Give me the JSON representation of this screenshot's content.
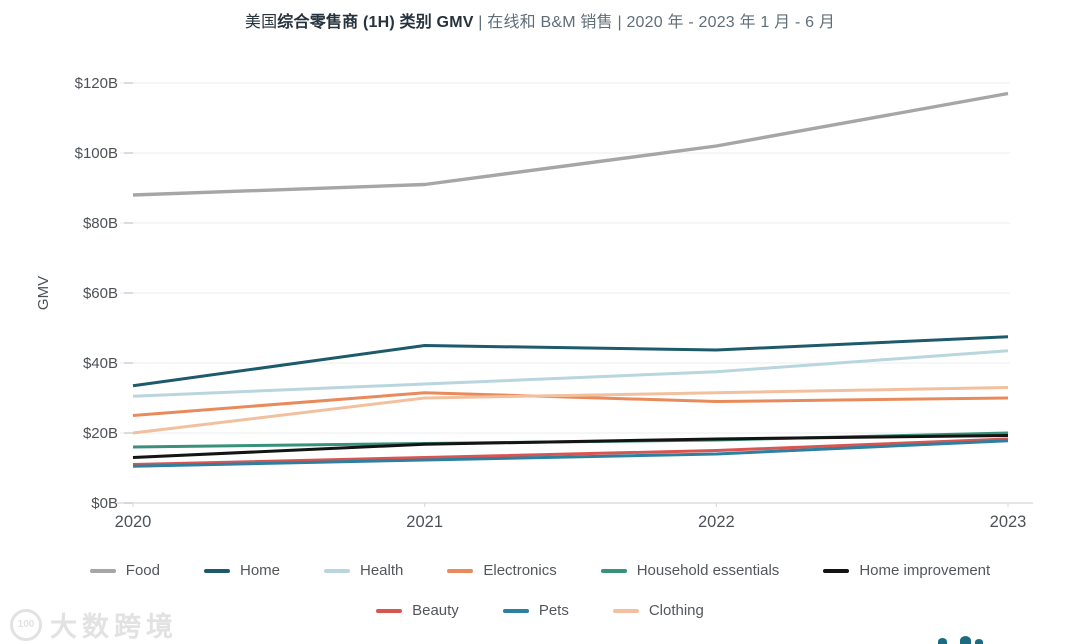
{
  "title": {
    "prefix": "美国",
    "bold": "综合零售商 (1H) 类别 GMV",
    "rest": " | 在线和 B&M 销售 | 2020 年 - 2023 年 1 月 - 6 月"
  },
  "watermark": {
    "logo": "100",
    "text": "大数跨境"
  },
  "chart_data": {
    "type": "line",
    "title": "美国综合零售商 (1H) 类别 GMV | 在线和 B&M 销售 | 2020 年 - 2023 年 1 月 - 6 月",
    "xlabel": "",
    "ylabel": "GMV",
    "x": [
      2020,
      2021,
      2022,
      2023
    ],
    "x_labels": [
      "2020",
      "2021",
      "2022",
      "2023"
    ],
    "y_ticks": [
      "$0B",
      "$20B",
      "$40B",
      "$60B",
      "$80B",
      "$100B",
      "$120B"
    ],
    "ylim": [
      0,
      120
    ],
    "y_tick_step": 20,
    "unit": "$ billions GMV",
    "grid": "horizontal",
    "legend_position": "bottom",
    "series": [
      {
        "name": "Food",
        "color": "#a6a6a6",
        "width": 3.4,
        "values": [
          88,
          91,
          102,
          117
        ]
      },
      {
        "name": "Home",
        "color": "#1d5a6b",
        "width": 3,
        "values": [
          33.5,
          45,
          43.7,
          47.5
        ]
      },
      {
        "name": "Health",
        "color": "#b9d6de",
        "width": 3,
        "values": [
          30.5,
          34,
          37.5,
          43.5
        ]
      },
      {
        "name": "Electronics",
        "color": "#e98a5b",
        "width": 3,
        "values": [
          25,
          31.5,
          29,
          30
        ]
      },
      {
        "name": "Household essentials",
        "color": "#38917a",
        "width": 3,
        "values": [
          16,
          17,
          18,
          20
        ]
      },
      {
        "name": "Home improvement",
        "color": "#141414",
        "width": 3,
        "values": [
          13,
          16.8,
          18.3,
          19.3
        ]
      },
      {
        "name": "Beauty",
        "color": "#d95552",
        "width": 3,
        "values": [
          11,
          13,
          15,
          18.3
        ]
      },
      {
        "name": "Pets",
        "color": "#2d80a0",
        "width": 3,
        "values": [
          10.5,
          12.3,
          14,
          17.8
        ]
      },
      {
        "name": "Clothing",
        "color": "#f2c09f",
        "width": 3,
        "values": [
          20,
          30,
          31.5,
          33
        ]
      }
    ],
    "legend_rows": [
      [
        "Food",
        "Home",
        "Health",
        "Electronics",
        "Household essentials",
        "Home improvement"
      ],
      [
        "Beauty",
        "Pets",
        "Clothing"
      ]
    ]
  }
}
